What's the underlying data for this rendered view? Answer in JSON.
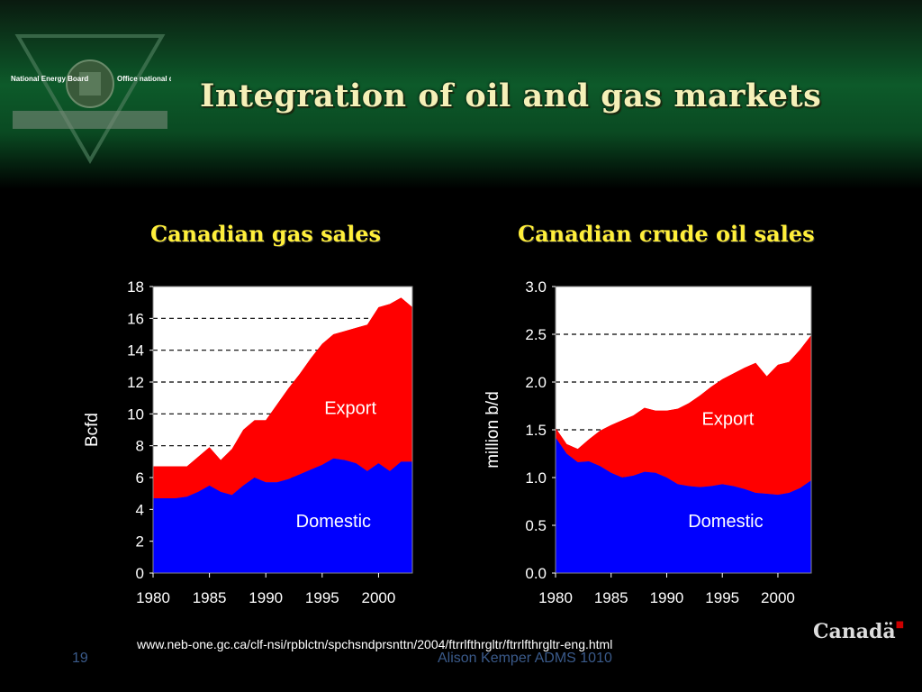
{
  "header": {
    "title": "Integration of oil and gas markets",
    "logo_left_text": "National Energy Board",
    "logo_right_text": "Office national de l'énergie"
  },
  "footer": {
    "url": "www.neb-one.gc.ca/clf-nsi/rpblctn/spchsndprsnttn/2004/ftrrlfthrgltr/ftrrlfthrgltr-eng.html",
    "slide_number": "19",
    "author": "Alison Kemper ADMS 1010",
    "wordmark": "Canadä"
  },
  "colors": {
    "domestic": "#0000ff",
    "export": "#ff0000",
    "plot_bg": "#ffffff",
    "title": "#ffef3a"
  },
  "chart_data": [
    {
      "type": "area",
      "stacked": true,
      "title": "Canadian gas sales",
      "ylabel": "Bcfd",
      "xlim": [
        1980,
        2003
      ],
      "ylim": [
        0,
        18
      ],
      "yticks": [
        "0",
        "2",
        "4",
        "6",
        "8",
        "10",
        "12",
        "14",
        "16",
        "18"
      ],
      "xticks": [
        "1980",
        "1985",
        "1990",
        "1995",
        "2000"
      ],
      "grid": "dashed-horizontal",
      "x": [
        1980,
        1981,
        1982,
        1983,
        1984,
        1985,
        1986,
        1987,
        1988,
        1989,
        1990,
        1991,
        1992,
        1993,
        1994,
        1995,
        1996,
        1997,
        1998,
        1999,
        2000,
        2001,
        2002,
        2003
      ],
      "series": [
        {
          "name": "Domestic",
          "values": [
            4.7,
            4.7,
            4.7,
            4.8,
            5.1,
            5.5,
            5.1,
            4.9,
            5.5,
            6.0,
            5.7,
            5.7,
            5.9,
            6.2,
            6.5,
            6.8,
            7.2,
            7.1,
            6.9,
            6.4,
            6.9,
            6.4,
            7.0,
            7.0
          ]
        },
        {
          "name": "Export",
          "total": [
            6.7,
            6.7,
            6.7,
            6.7,
            7.3,
            7.9,
            7.1,
            7.8,
            9.0,
            9.6,
            9.6,
            10.6,
            11.6,
            12.5,
            13.5,
            14.4,
            15.0,
            15.2,
            15.4,
            15.6,
            16.7,
            16.9,
            17.3,
            16.7
          ]
        }
      ]
    },
    {
      "type": "area",
      "stacked": true,
      "title": "Canadian crude oil sales",
      "ylabel": "million b/d",
      "xlim": [
        1980,
        2003
      ],
      "ylim": [
        0,
        3.0
      ],
      "yticks": [
        "0.0",
        "0.5",
        "1.0",
        "1.5",
        "2.0",
        "2.5",
        "3.0"
      ],
      "xticks": [
        "1980",
        "1985",
        "1990",
        "1995",
        "2000"
      ],
      "grid": "dashed-horizontal",
      "x": [
        1980,
        1981,
        1982,
        1983,
        1984,
        1985,
        1986,
        1987,
        1988,
        1989,
        1990,
        1991,
        1992,
        1993,
        1994,
        1995,
        1996,
        1997,
        1998,
        1999,
        2000,
        2001,
        2002,
        2003
      ],
      "series": [
        {
          "name": "Domestic",
          "values": [
            1.42,
            1.25,
            1.16,
            1.17,
            1.12,
            1.05,
            1.0,
            1.02,
            1.06,
            1.05,
            1.0,
            0.93,
            0.91,
            0.9,
            0.91,
            0.93,
            0.91,
            0.88,
            0.84,
            0.83,
            0.82,
            0.84,
            0.89,
            0.97
          ]
        },
        {
          "name": "Export",
          "total": [
            1.52,
            1.35,
            1.3,
            1.4,
            1.49,
            1.55,
            1.6,
            1.65,
            1.73,
            1.7,
            1.7,
            1.72,
            1.78,
            1.86,
            1.95,
            2.03,
            2.09,
            2.15,
            2.2,
            2.06,
            2.18,
            2.21,
            2.34,
            2.49
          ]
        }
      ]
    }
  ]
}
